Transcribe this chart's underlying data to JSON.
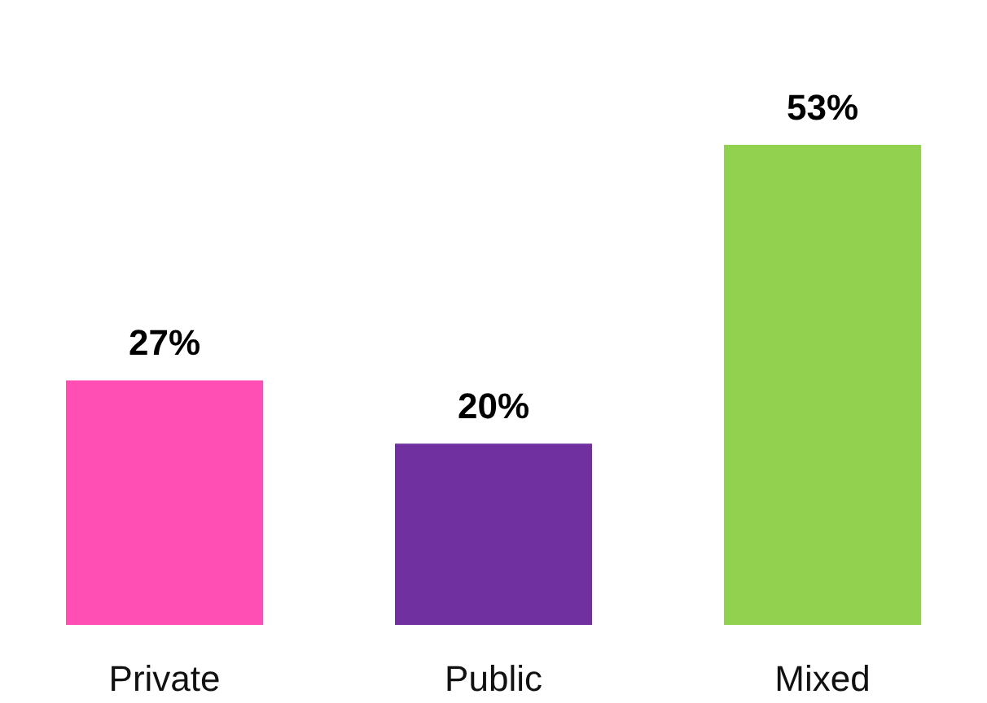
{
  "chart_data": {
    "type": "bar",
    "categories": [
      "Private",
      "Public",
      "Mixed"
    ],
    "values": [
      27,
      20,
      53
    ],
    "colors": [
      "#ff4fb4",
      "#7030a0",
      "#92d050"
    ],
    "value_labels": [
      "27%",
      "20%",
      "53%"
    ]
  }
}
